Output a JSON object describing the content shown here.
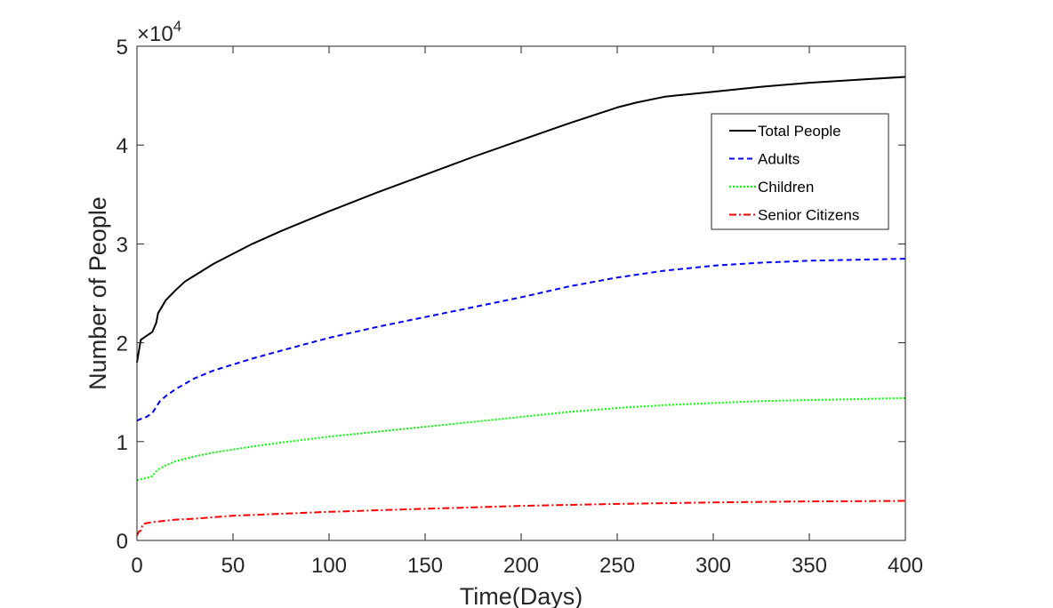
{
  "chart_data": {
    "type": "line",
    "title": "",
    "xlabel": "Time(Days)",
    "ylabel": "Number of People",
    "xlim": [
      0,
      400
    ],
    "ylim": [
      0,
      50000
    ],
    "x_ticks": [
      0,
      50,
      100,
      150,
      200,
      250,
      300,
      350,
      400
    ],
    "y_ticks": [
      0,
      10000,
      20000,
      30000,
      40000,
      50000
    ],
    "y_tick_labels": [
      "0",
      "1",
      "2",
      "3",
      "4",
      "5"
    ],
    "y_exponent_label": "×10",
    "y_exponent_power": "4",
    "grid": false,
    "legend_position": "top-right",
    "series": [
      {
        "name": "Total People",
        "color": "#000000",
        "style": "solid",
        "x": [
          0,
          1,
          2,
          5,
          8,
          10,
          11,
          15,
          20,
          25,
          30,
          40,
          50,
          60,
          75,
          100,
          125,
          150,
          175,
          200,
          225,
          250,
          260,
          275,
          300,
          325,
          350,
          375,
          400
        ],
        "y": [
          18000,
          19200,
          20300,
          20700,
          21100,
          22000,
          23000,
          24300,
          25300,
          26200,
          26800,
          28000,
          29000,
          30000,
          31300,
          33300,
          35200,
          37000,
          38800,
          40500,
          42200,
          43800,
          44300,
          44900,
          45400,
          45900,
          46300,
          46600,
          46900
        ]
      },
      {
        "name": "Adults",
        "color": "#0000ff",
        "style": "dashed",
        "x": [
          0,
          2,
          5,
          8,
          10,
          12,
          15,
          20,
          30,
          40,
          50,
          60,
          75,
          100,
          125,
          150,
          175,
          200,
          225,
          250,
          275,
          300,
          325,
          350,
          375,
          400
        ],
        "y": [
          12100,
          12300,
          12500,
          12900,
          13500,
          14100,
          14600,
          15300,
          16400,
          17200,
          17800,
          18400,
          19200,
          20500,
          21600,
          22600,
          23600,
          24600,
          25700,
          26600,
          27300,
          27800,
          28100,
          28300,
          28400,
          28500
        ]
      },
      {
        "name": "Children",
        "color": "#00ff00",
        "style": "dotted",
        "x": [
          0,
          2,
          5,
          8,
          10,
          12,
          15,
          20,
          30,
          40,
          50,
          60,
          75,
          100,
          125,
          150,
          175,
          200,
          225,
          250,
          275,
          300,
          325,
          350,
          375,
          400
        ],
        "y": [
          6100,
          6200,
          6300,
          6500,
          7000,
          7300,
          7600,
          8000,
          8500,
          8900,
          9200,
          9500,
          9900,
          10500,
          11000,
          11500,
          12000,
          12500,
          13000,
          13400,
          13700,
          13900,
          14100,
          14200,
          14300,
          14400
        ]
      },
      {
        "name": "Senior Citizens",
        "color": "#ff0000",
        "style": "dashdot",
        "x": [
          0,
          1,
          2,
          3,
          4,
          5,
          10,
          15,
          20,
          30,
          50,
          75,
          100,
          150,
          200,
          250,
          300,
          350,
          400
        ],
        "y": [
          500,
          900,
          1000,
          1600,
          1700,
          1750,
          1900,
          2000,
          2100,
          2200,
          2500,
          2700,
          2900,
          3200,
          3500,
          3700,
          3850,
          3950,
          4000
        ]
      }
    ]
  }
}
